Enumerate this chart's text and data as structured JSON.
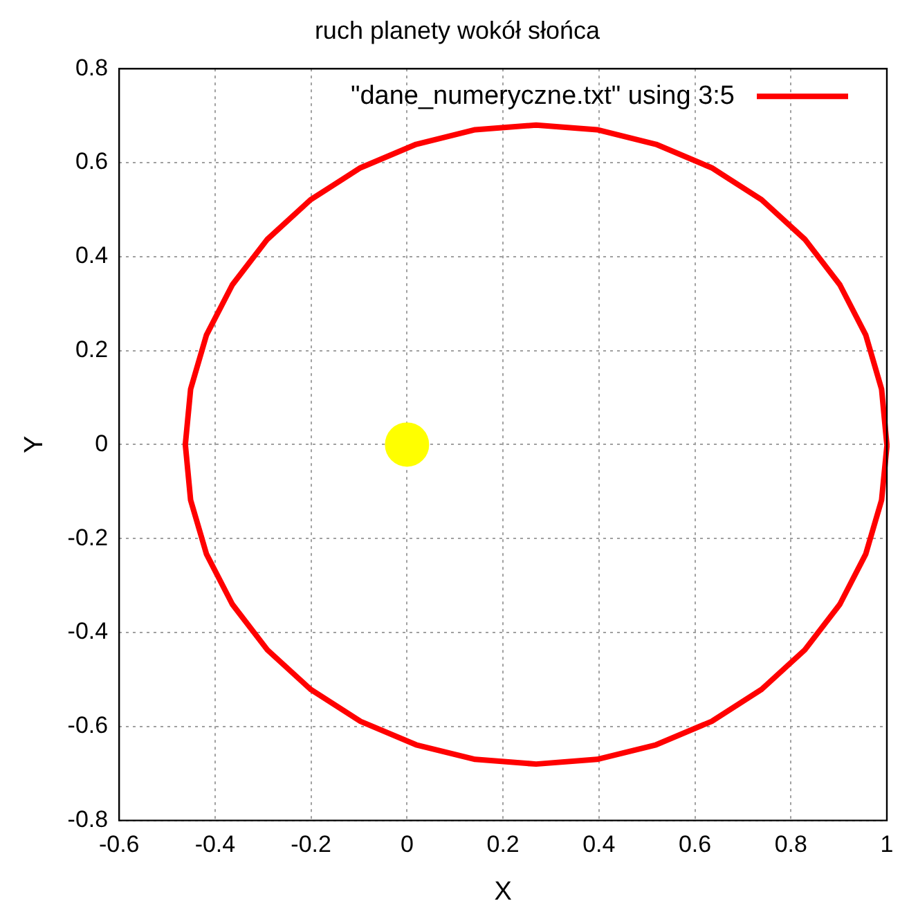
{
  "chart_data": {
    "type": "line",
    "title": "ruch planety wokół słońca",
    "xlabel": "X",
    "ylabel": "Y",
    "xlim": [
      -0.6,
      1
    ],
    "xticks": [
      -0.6,
      -0.4,
      -0.2,
      0,
      0.2,
      0.4,
      0.6,
      0.8,
      1
    ],
    "ylim": [
      -0.8,
      0.8
    ],
    "yticks": [
      -0.8,
      -0.6,
      -0.4,
      -0.2,
      0,
      0.2,
      0.4,
      0.6,
      0.8
    ],
    "grid": true,
    "legend": "top right",
    "line_style": "solid",
    "series": [
      {
        "name": "\"dane_numeryczne.txt\" using 3:5",
        "color": "#ff0000",
        "type": "line",
        "marker": "none",
        "x": [
          1.0,
          0.989,
          0.956,
          0.902,
          0.829,
          0.739,
          0.635,
          0.519,
          0.396,
          0.269,
          0.142,
          0.019,
          -0.097,
          -0.201,
          -0.291,
          -0.364,
          -0.418,
          -0.451,
          -0.462,
          -0.451,
          -0.418,
          -0.364,
          -0.291,
          -0.201,
          -0.097,
          0.019,
          0.142,
          0.269,
          0.396,
          0.519,
          0.635,
          0.739,
          0.829,
          0.902,
          0.956,
          0.989,
          1.0
        ],
        "values": [
          0,
          0.118,
          0.233,
          0.34,
          0.437,
          0.521,
          0.589,
          0.639,
          0.67,
          0.68,
          0.67,
          0.639,
          0.589,
          0.521,
          0.437,
          0.34,
          0.233,
          0.118,
          0,
          -0.118,
          -0.233,
          -0.34,
          -0.437,
          -0.521,
          -0.589,
          -0.639,
          -0.67,
          -0.68,
          -0.67,
          -0.639,
          -0.589,
          -0.521,
          -0.437,
          -0.34,
          -0.233,
          -0.118,
          -0.004
        ]
      },
      {
        "color": "#ffff00",
        "type": "scatter",
        "marker": "circle",
        "x": [
          0
        ],
        "values": [
          0
        ]
      }
    ]
  }
}
